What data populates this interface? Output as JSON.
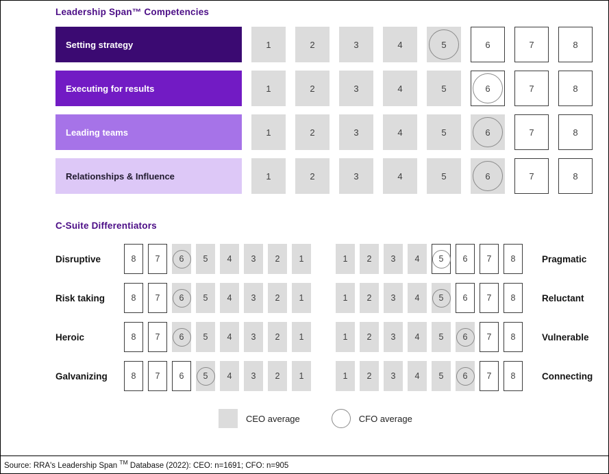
{
  "chart_data": [
    {
      "type": "table",
      "title": "Leadership Span™ Competencies",
      "scale": [
        1,
        2,
        3,
        4,
        5,
        6,
        7,
        8
      ],
      "categories": [
        "Setting strategy",
        "Executing for results",
        "Leading teams",
        "Relationships & Influence"
      ],
      "row_colors": [
        "#3B0A72",
        "#721BC4",
        "#A673E8",
        "#DDC8F7"
      ],
      "row_text_colors": [
        "#FFFFFF",
        "#FFFFFF",
        "#FFFFFF",
        "#201A2E"
      ],
      "series": [
        {
          "name": "CEO average",
          "values": [
            5,
            5,
            6,
            6
          ]
        },
        {
          "name": "CFO average",
          "values": [
            5,
            6,
            6,
            6
          ]
        }
      ]
    },
    {
      "type": "table",
      "title": "C-Suite Differentiators",
      "left": {
        "display_order": [
          8,
          7,
          6,
          5,
          4,
          3,
          2,
          1
        ],
        "categories": [
          "Disruptive",
          "Risk taking",
          "Heroic",
          "Galvanizing"
        ],
        "series": [
          {
            "name": "CEO average",
            "values": [
              6,
              6,
              6,
              5
            ]
          },
          {
            "name": "CFO average",
            "values": [
              6,
              6,
              6,
              5
            ]
          }
        ]
      },
      "right": {
        "display_order": [
          1,
          2,
          3,
          4,
          5,
          6,
          7,
          8
        ],
        "categories": [
          "Pragmatic",
          "Reluctant",
          "Vulnerable",
          "Connecting"
        ],
        "series": [
          {
            "name": "CEO average",
            "values": [
              4,
              5,
              6,
              6
            ]
          },
          {
            "name": "CFO average",
            "values": [
              5,
              5,
              6,
              6
            ]
          }
        ]
      }
    }
  ],
  "legend": {
    "ceo_label": "CEO average",
    "cfo_label": "CFO average"
  },
  "source": {
    "prefix": "Source: RRA's Leadership Span ",
    "tm": "TM",
    "suffix": " Database (2022): CEO: n=1691; CFO: n=905"
  },
  "colors": {
    "accent_purple": "#4B0D86",
    "cell_gray": "#DCDCDC",
    "ring_border": "#8A8A8A",
    "cell_border": "#3C3C3C"
  }
}
